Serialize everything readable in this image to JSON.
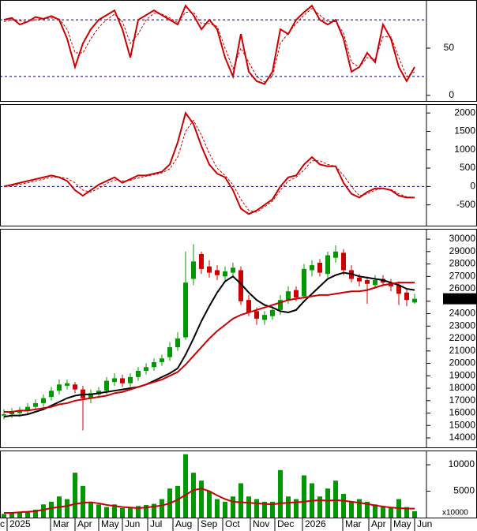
{
  "chart_data": [
    {
      "type": "line",
      "ylim": [
        -6,
        101
      ],
      "yticks": [
        0,
        50
      ],
      "reference_lines": [
        20,
        80
      ],
      "series": [
        {
          "color": "#cc0000",
          "dashed": false,
          "values": [
            80,
            82,
            75,
            78,
            83,
            81,
            84,
            80,
            60,
            30,
            55,
            70,
            80,
            85,
            90,
            70,
            40,
            80,
            85,
            90,
            85,
            80,
            75,
            95,
            85,
            70,
            80,
            70,
            40,
            20,
            65,
            25,
            15,
            12,
            25,
            70,
            65,
            80,
            88,
            95,
            80,
            75,
            80,
            60,
            25,
            30,
            45,
            35,
            75,
            60,
            30,
            15,
            30
          ]
        },
        {
          "color": "#cc0000",
          "dashed": true,
          "values": [
            78,
            80,
            79,
            78,
            80,
            81,
            82,
            81,
            70,
            45,
            45,
            60,
            72,
            80,
            86,
            78,
            55,
            65,
            80,
            87,
            86,
            82,
            77,
            88,
            88,
            76,
            76,
            73,
            50,
            28,
            50,
            35,
            20,
            14,
            20,
            55,
            66,
            76,
            85,
            92,
            85,
            78,
            78,
            66,
            35,
            30,
            40,
            38,
            62,
            62,
            40,
            20,
            25
          ]
        }
      ]
    },
    {
      "type": "line",
      "ylim": [
        -1065,
        2240
      ],
      "yticks": [
        -500,
        0,
        500,
        1000,
        1500,
        2000
      ],
      "reference_lines": [
        0
      ],
      "series": [
        {
          "color": "#cc0000",
          "dashed": false,
          "values": [
            0,
            50,
            100,
            150,
            200,
            250,
            300,
            250,
            150,
            -100,
            -250,
            -100,
            50,
            150,
            250,
            100,
            200,
            300,
            300,
            350,
            400,
            600,
            1200,
            2000,
            1700,
            1100,
            600,
            350,
            250,
            -100,
            -600,
            -750,
            -650,
            -500,
            -350,
            0,
            250,
            300,
            600,
            800,
            600,
            550,
            550,
            100,
            -200,
            -300,
            -150,
            -50,
            -50,
            -100,
            -250,
            -300,
            -300
          ]
        },
        {
          "color": "#cc0000",
          "dashed": true,
          "values": [
            0,
            20,
            60,
            100,
            150,
            200,
            250,
            260,
            220,
            100,
            -100,
            -150,
            -50,
            80,
            180,
            150,
            170,
            230,
            280,
            320,
            370,
            480,
            800,
            1500,
            1800,
            1400,
            900,
            500,
            300,
            50,
            -350,
            -650,
            -700,
            -550,
            -400,
            -100,
            150,
            250,
            450,
            700,
            700,
            600,
            550,
            300,
            0,
            -250,
            -200,
            -100,
            -50,
            -80,
            -200,
            -280,
            -300
          ]
        }
      ]
    },
    {
      "type": "candlestick",
      "ylim": [
        13240,
        30830
      ],
      "yticks": [
        14000,
        15000,
        16000,
        17000,
        18000,
        19000,
        20000,
        21000,
        22000,
        23000,
        24000,
        25000,
        26000,
        27000,
        28000,
        29000,
        30000
      ],
      "up_color": "#009900",
      "down_color": "#cc0000",
      "last_price": {
        "value": 25200,
        "label": "25200.00"
      },
      "open": [
        15800,
        15900,
        16000,
        16200,
        16500,
        16800,
        17300,
        17800,
        18200,
        18300,
        17900,
        17200,
        17500,
        17800,
        18500,
        18800,
        18400,
        18900,
        19400,
        19700,
        20100,
        20500,
        21300,
        22100,
        26800,
        28800,
        27800,
        27500,
        27000,
        27300,
        27500,
        25100,
        24200,
        23500,
        23800,
        24300,
        25100,
        25900,
        25400,
        27500,
        28100,
        27200,
        28500,
        28900,
        27500,
        26900,
        26700,
        26300,
        26800,
        26500,
        26300,
        25700,
        24900
      ],
      "high": [
        16300,
        16400,
        16500,
        16800,
        17100,
        17500,
        18100,
        18700,
        18700,
        18500,
        18200,
        17900,
        18100,
        18900,
        19200,
        19100,
        19200,
        19700,
        20000,
        20400,
        20700,
        21700,
        22500,
        29000,
        29600,
        29000,
        28300,
        27900,
        27800,
        28100,
        27800,
        25500,
        24500,
        24200,
        24600,
        25500,
        26200,
        26200,
        28000,
        28300,
        28400,
        29000,
        29500,
        29200,
        27900,
        27200,
        27000,
        27100,
        27100,
        26800,
        26600,
        26000,
        25600
      ],
      "low": [
        15500,
        15600,
        15700,
        15900,
        16200,
        16500,
        17000,
        17500,
        17900,
        17600,
        14600,
        16800,
        17200,
        17500,
        18200,
        18100,
        18100,
        18600,
        19100,
        19400,
        19800,
        20200,
        21000,
        21900,
        26300,
        27200,
        26900,
        26700,
        26600,
        26900,
        24700,
        23800,
        23100,
        23100,
        23500,
        23900,
        24800,
        25000,
        25200,
        27000,
        27000,
        26900,
        28100,
        27100,
        26500,
        26200,
        24800,
        26000,
        26200,
        25800,
        24700,
        24600,
        24800
      ],
      "close": [
        15900,
        16100,
        16200,
        16500,
        16800,
        17200,
        17800,
        18300,
        18400,
        17900,
        17200,
        17600,
        17800,
        18600,
        18800,
        18400,
        18900,
        19400,
        19700,
        20100,
        20400,
        21300,
        22000,
        26500,
        28200,
        27600,
        27300,
        27100,
        27400,
        27700,
        25000,
        24100,
        23600,
        23900,
        24300,
        25100,
        25800,
        25300,
        27600,
        27900,
        27300,
        28700,
        29000,
        27500,
        26800,
        26600,
        26400,
        26700,
        26500,
        26200,
        25600,
        25100,
        25200
      ],
      "series": [
        {
          "color": "#000000",
          "values": [
            15700,
            15800,
            15800,
            15900,
            16100,
            16300,
            16600,
            16900,
            17200,
            17400,
            17500,
            17500,
            17600,
            17700,
            17800,
            17900,
            18000,
            18100,
            18300,
            18600,
            18900,
            19200,
            19600,
            20700,
            22000,
            23400,
            24600,
            25700,
            26600,
            27000,
            26400,
            25700,
            25100,
            24700,
            24500,
            24200,
            24100,
            24300,
            25000,
            25600,
            26200,
            26800,
            27100,
            27300,
            27200,
            27000,
            26900,
            26800,
            26700,
            26500,
            26300,
            26000,
            25900
          ]
        },
        {
          "color": "#cc0000",
          "values": [
            16100,
            16100,
            16200,
            16200,
            16300,
            16400,
            16500,
            16700,
            16800,
            17000,
            17100,
            17200,
            17300,
            17400,
            17600,
            17700,
            17900,
            18100,
            18300,
            18500,
            18700,
            19000,
            19300,
            19900,
            20600,
            21300,
            22000,
            22600,
            23100,
            23600,
            23900,
            24100,
            24300,
            24500,
            24700,
            24900,
            25100,
            25200,
            25300,
            25400,
            25500,
            25500,
            25600,
            25700,
            25800,
            25800,
            25900,
            26100,
            26300,
            26400,
            26500,
            26500,
            26500
          ]
        }
      ]
    },
    {
      "type": "bar",
      "ylim": [
        0,
        12700
      ],
      "yticks": [
        5000,
        10000
      ],
      "unit_label": "x10000",
      "color": "#009900",
      "values": [
        700,
        900,
        1100,
        1200,
        1500,
        2500,
        3000,
        4000,
        3500,
        8500,
        6000,
        3000,
        2500,
        2000,
        2500,
        1800,
        2000,
        2200,
        2400,
        2600,
        3500,
        5500,
        6000,
        12000,
        8500,
        7000,
        5000,
        3500,
        3000,
        4000,
        6500,
        4000,
        3500,
        3000,
        3000,
        9000,
        4000,
        3500,
        8000,
        6500,
        4000,
        5500,
        7000,
        4500,
        3000,
        3500,
        3000,
        2500,
        2000,
        1800,
        3500,
        2000,
        1200
      ],
      "series": [
        {
          "color": "#cc0000",
          "values": [
            900,
            900,
            1000,
            1100,
            1200,
            1500,
            1800,
            2000,
            2200,
            2600,
            2800,
            2900,
            2700,
            2400,
            2200,
            2000,
            1900,
            1800,
            1900,
            2100,
            2300,
            2700,
            3400,
            4300,
            5200,
            5500,
            5000,
            4200,
            3500,
            3000,
            2900,
            2800,
            2700,
            2600,
            2500,
            2700,
            2800,
            2900,
            3000,
            3200,
            3300,
            3200,
            3300,
            3200,
            3000,
            2800,
            2600,
            2300,
            2100,
            1900,
            1800,
            1700,
            1700
          ]
        }
      ],
      "xlim": [
        -0.5,
        53.5
      ],
      "xticks": [
        {
          "value": -0.5,
          "label": "c"
        },
        {
          "value": 0.7,
          "label": "2025"
        },
        {
          "value": 6.2,
          "label": "Mar"
        },
        {
          "value": 9.3,
          "label": "Apr"
        },
        {
          "value": 12.3,
          "label": "May"
        },
        {
          "value": 15.3,
          "label": "Jun"
        },
        {
          "value": 18.5,
          "label": "Jul"
        },
        {
          "value": 21.7,
          "label": "Aug"
        },
        {
          "value": 24.9,
          "label": "Sep"
        },
        {
          "value": 28,
          "label": "Oct"
        },
        {
          "value": 31.5,
          "label": "Nov"
        },
        {
          "value": 34.6,
          "label": "Dec"
        },
        {
          "value": 38.1,
          "label": "2026"
        },
        {
          "value": 43.2,
          "label": "Mar"
        },
        {
          "value": 46.5,
          "label": "Apr"
        },
        {
          "value": 49.3,
          "label": "May"
        },
        {
          "value": 52.3,
          "label": "Jun"
        }
      ]
    }
  ]
}
